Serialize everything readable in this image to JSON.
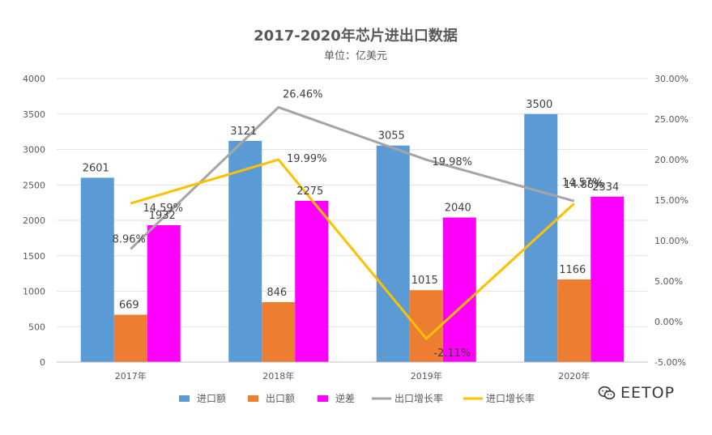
{
  "chart_data": {
    "type": "bar",
    "title": "2017-2020年芯片进出口数据",
    "subtitle": "单位：亿美元",
    "categories": [
      "2017年",
      "2018年",
      "2019年",
      "2020年"
    ],
    "ylim": [
      0,
      4000
    ],
    "yticks": [
      "0",
      "500",
      "1000",
      "1500",
      "2000",
      "2500",
      "3000",
      "3500",
      "4000"
    ],
    "y2lim": [
      -5,
      30
    ],
    "y2ticks": [
      "-5.00%",
      "0.00%",
      "5.00%",
      "10.00%",
      "15.00%",
      "20.00%",
      "25.00%",
      "30.00%"
    ],
    "series": [
      {
        "name": "进口额",
        "type": "bar",
        "color": "#5B9BD5",
        "values": [
          2601,
          3121,
          3055,
          3500
        ],
        "labels": [
          "2601",
          "3121",
          "3055",
          "3500"
        ]
      },
      {
        "name": "出口额",
        "type": "bar",
        "color": "#ED7D31",
        "values": [
          669,
          846,
          1015,
          1166
        ],
        "labels": [
          "669",
          "846",
          "1015",
          "1166"
        ]
      },
      {
        "name": "逆差",
        "type": "bar",
        "color": "#FF00FF",
        "values": [
          1932,
          2275,
          2040,
          2334
        ],
        "labels": [
          "1932",
          "2275",
          "2040",
          "2334"
        ]
      },
      {
        "name": "出口增长率",
        "type": "line",
        "axis": "secondary",
        "color": "#A5A5A5",
        "values": [
          8.96,
          26.46,
          19.98,
          14.88
        ],
        "labels": [
          "8.96%",
          "26.46%",
          "19.98%",
          "14.88%"
        ]
      },
      {
        "name": "进口增长率",
        "type": "line",
        "axis": "secondary",
        "color": "#FFC000",
        "values": [
          14.59,
          19.99,
          -2.11,
          14.57
        ],
        "labels": [
          "14.59%",
          "19.99%",
          "-2.11%",
          "14.57%"
        ]
      }
    ],
    "gridlines": true,
    "legend_position": "bottom"
  },
  "watermark": {
    "text": "EETOP",
    "icon": "wechat-icon"
  }
}
